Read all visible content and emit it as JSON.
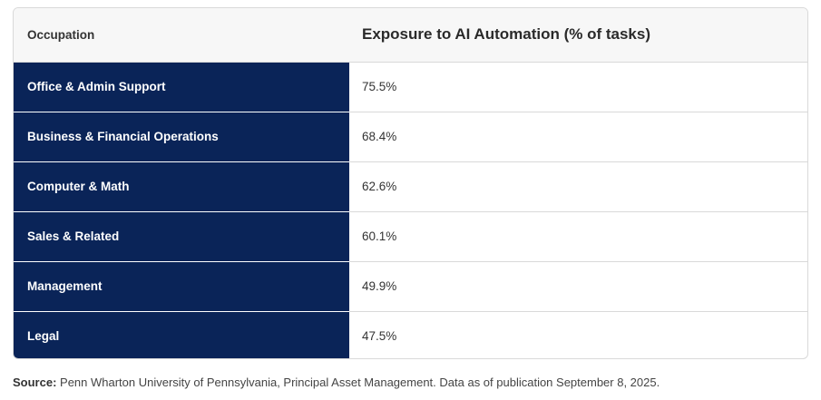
{
  "table": {
    "header": {
      "occupation": "Occupation",
      "exposure": "Exposure to AI Automation (% of tasks)"
    },
    "rows": [
      {
        "occupation": "Office & Admin Support",
        "exposure": "75.5%"
      },
      {
        "occupation": "Business & Financial Operations",
        "exposure": "68.4%"
      },
      {
        "occupation": "Computer & Math",
        "exposure": "62.6%"
      },
      {
        "occupation": "Sales & Related",
        "exposure": "60.1%"
      },
      {
        "occupation": "Management",
        "exposure": "49.9%"
      },
      {
        "occupation": "Legal",
        "exposure": "47.5%"
      }
    ]
  },
  "source": {
    "label": "Source:",
    "text": " Penn Wharton University of Pennsylvania, Principal Asset Management. Data as of publication September 8, 2025."
  },
  "colors": {
    "occupation_cell_bg": "#0a2458",
    "header_bg": "#f7f7f7"
  }
}
